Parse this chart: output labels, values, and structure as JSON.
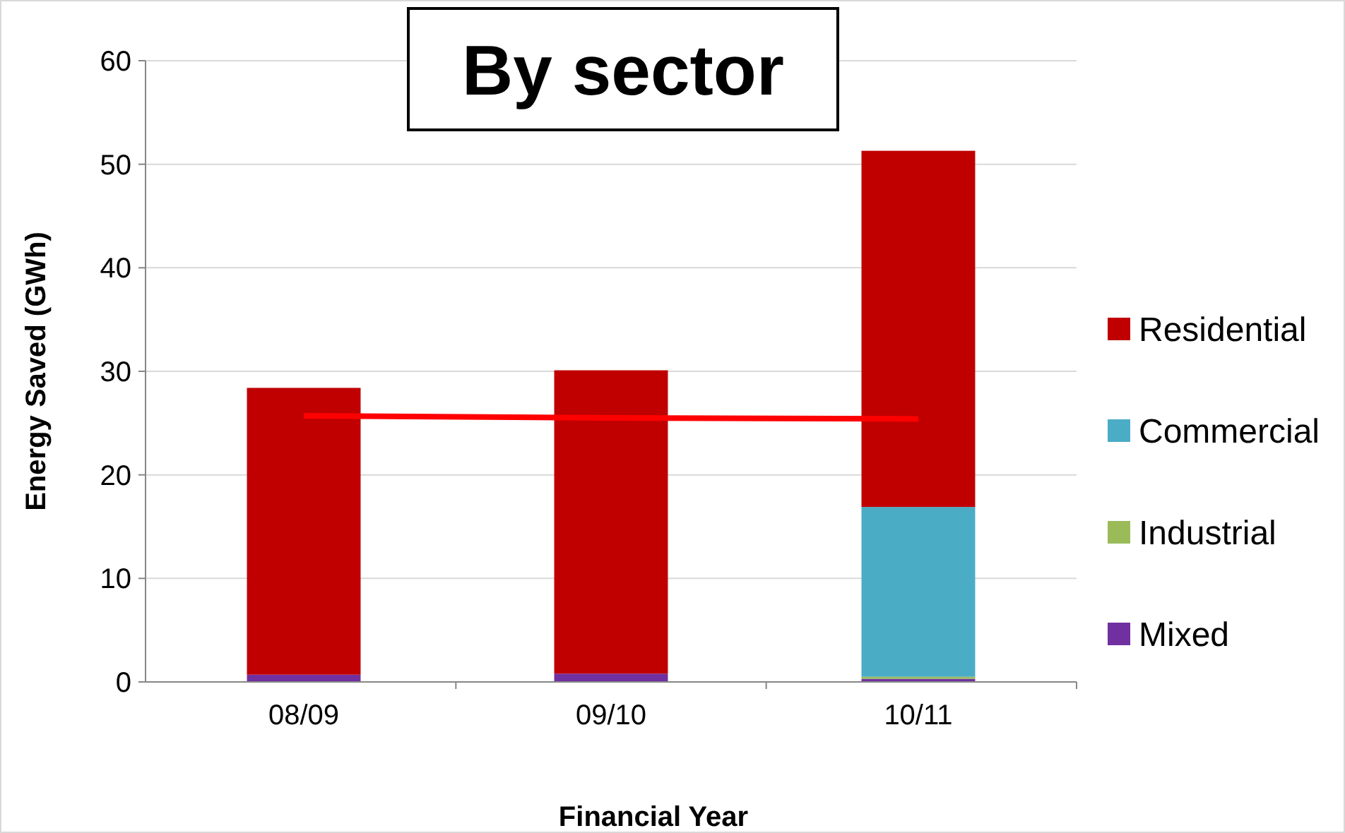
{
  "chart_data": {
    "type": "bar",
    "title": "By sector",
    "xlabel": "Financial Year",
    "ylabel": "Energy Saved (GWh)",
    "categories": [
      "08/09",
      "09/10",
      "10/11"
    ],
    "stacked": true,
    "ylim": [
      0,
      60
    ],
    "yticks": [
      0,
      10,
      20,
      30,
      40,
      50,
      60
    ],
    "grid": "y",
    "legend": "right",
    "series": [
      {
        "name": "Mixed",
        "color": "#7030a0",
        "values": [
          0.7,
          0.8,
          0.3
        ]
      },
      {
        "name": "Industrial",
        "color": "#9bbb59",
        "values": [
          0,
          0,
          0.2
        ]
      },
      {
        "name": "Commercial",
        "color": "#4bacc6",
        "values": [
          0,
          0,
          16.4
        ]
      },
      {
        "name": "Residential",
        "color": "#c00000",
        "values": [
          27.7,
          29.3,
          34.4
        ]
      },
      {
        "type": "line",
        "color": "#ff0000",
        "marker": "none",
        "values": [
          25.7,
          25.5,
          25.4
        ]
      }
    ]
  }
}
